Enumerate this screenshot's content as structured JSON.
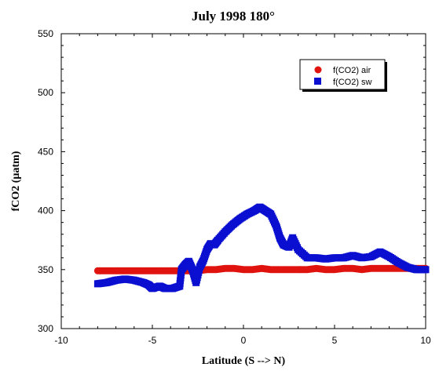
{
  "chart_data": {
    "type": "scatter",
    "title": "July 1998 180°",
    "xlabel": "Latitude (S --> N)",
    "ylabel": "fCO2 (µatm)",
    "xlim": [
      -10,
      10
    ],
    "ylim": [
      300,
      550
    ],
    "x_ticks": [
      -10,
      -5,
      0,
      5,
      10
    ],
    "y_ticks": [
      300,
      350,
      400,
      450,
      500,
      550
    ],
    "x_tick_labels": [
      "-10",
      "-5",
      "0",
      "5",
      "10"
    ],
    "y_tick_labels": [
      "300",
      "350",
      "400",
      "450",
      "500",
      "550"
    ],
    "grid": false,
    "legend_position": "top-right",
    "series": [
      {
        "name": "f(CO2) air",
        "color": "#e0130f",
        "marker": "circle",
        "points": [
          [
            -8.0,
            349
          ],
          [
            -7.5,
            349
          ],
          [
            -7.0,
            349
          ],
          [
            -6.5,
            349
          ],
          [
            -6.0,
            349
          ],
          [
            -5.5,
            349
          ],
          [
            -5.0,
            349
          ],
          [
            -4.5,
            349
          ],
          [
            -4.0,
            349
          ],
          [
            -3.5,
            349
          ],
          [
            -3.0,
            349
          ],
          [
            -2.5,
            349
          ],
          [
            -2.0,
            350
          ],
          [
            -1.5,
            350
          ],
          [
            -1.0,
            351
          ],
          [
            -0.5,
            351
          ],
          [
            0.0,
            350
          ],
          [
            0.5,
            350
          ],
          [
            1.0,
            351
          ],
          [
            1.5,
            350
          ],
          [
            2.0,
            350
          ],
          [
            2.5,
            350
          ],
          [
            3.0,
            350
          ],
          [
            3.5,
            350
          ],
          [
            4.0,
            351
          ],
          [
            4.5,
            350
          ],
          [
            5.0,
            350
          ],
          [
            5.5,
            351
          ],
          [
            6.0,
            351
          ],
          [
            6.5,
            350
          ],
          [
            7.0,
            351
          ],
          [
            7.5,
            351
          ],
          [
            8.0,
            351
          ],
          [
            8.5,
            351
          ],
          [
            9.0,
            351
          ],
          [
            9.5,
            351
          ],
          [
            10.0,
            351
          ]
        ]
      },
      {
        "name": "f(CO2) sw",
        "color": "#0a0fd0",
        "marker": "square",
        "points": [
          [
            -8.0,
            338
          ],
          [
            -7.5,
            339
          ],
          [
            -7.0,
            341
          ],
          [
            -6.5,
            342
          ],
          [
            -6.0,
            341
          ],
          [
            -5.5,
            339
          ],
          [
            -5.2,
            337
          ],
          [
            -5.0,
            334
          ],
          [
            -4.6,
            336
          ],
          [
            -4.3,
            334
          ],
          [
            -3.9,
            334
          ],
          [
            -3.5,
            336
          ],
          [
            -3.4,
            350
          ],
          [
            -3.2,
            354
          ],
          [
            -3.0,
            357
          ],
          [
            -2.8,
            350
          ],
          [
            -2.6,
            339
          ],
          [
            -2.4,
            352
          ],
          [
            -2.2,
            358
          ],
          [
            -2.0,
            367
          ],
          [
            -1.8,
            372
          ],
          [
            -1.6,
            371
          ],
          [
            -1.4,
            375
          ],
          [
            -1.0,
            382
          ],
          [
            -0.6,
            388
          ],
          [
            -0.2,
            393
          ],
          [
            0.2,
            397
          ],
          [
            0.6,
            400
          ],
          [
            0.9,
            403
          ],
          [
            1.2,
            400
          ],
          [
            1.5,
            397
          ],
          [
            1.8,
            387
          ],
          [
            2.0,
            377
          ],
          [
            2.2,
            371
          ],
          [
            2.5,
            369
          ],
          [
            2.7,
            377
          ],
          [
            3.0,
            367
          ],
          [
            3.5,
            360
          ],
          [
            4.0,
            360
          ],
          [
            4.5,
            359
          ],
          [
            5.0,
            360
          ],
          [
            5.5,
            360
          ],
          [
            6.0,
            362
          ],
          [
            6.5,
            360
          ],
          [
            7.0,
            361
          ],
          [
            7.5,
            365
          ],
          [
            8.0,
            361
          ],
          [
            8.5,
            356
          ],
          [
            9.0,
            352
          ],
          [
            9.5,
            350
          ],
          [
            10.0,
            350
          ]
        ]
      }
    ]
  }
}
